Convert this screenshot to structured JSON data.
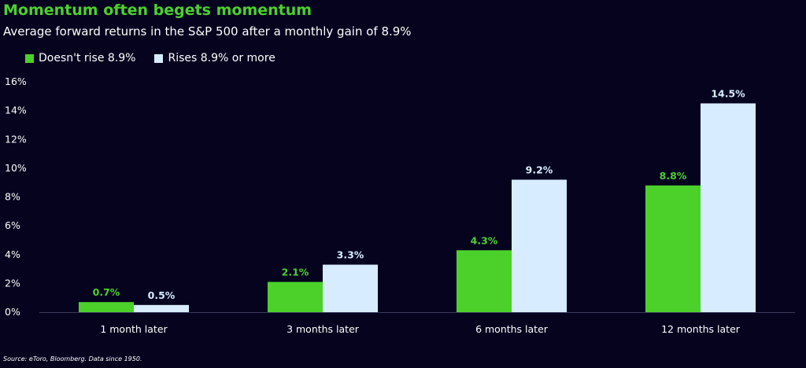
{
  "title": "Momentum often begets momentum",
  "subtitle": "Average forward returns in the S&P 500 after a monthly gain of 8.9%",
  "source": "Source: eToro, Bloomberg. Data since 1950.",
  "colors": {
    "background": "#05031e",
    "title": "#4cd12b",
    "series_green": "#4cd12b",
    "series_light": "#d8ecff",
    "label_green": "#4cd12b",
    "label_light": "#d8ecff"
  },
  "chart_data": {
    "type": "bar",
    "categories": [
      "1 month later",
      "3 months later",
      "6 months later",
      "12 months later"
    ],
    "series": [
      {
        "name": "Doesn't rise 8.9%",
        "values": [
          0.7,
          2.1,
          4.3,
          8.8
        ],
        "labels": [
          "0.7%",
          "2.1%",
          "4.3%",
          "8.8%"
        ],
        "color": "#4cd12b"
      },
      {
        "name": "Rises 8.9% or more",
        "values": [
          0.5,
          3.3,
          9.2,
          14.5
        ],
        "labels": [
          "0.5%",
          "3.3%",
          "9.2%",
          "14.5%"
        ],
        "color": "#d8ecff"
      }
    ],
    "yticks": [
      "0%",
      "2%",
      "4%",
      "6%",
      "8%",
      "10%",
      "12%",
      "14%",
      "16%"
    ],
    "ylim": [
      0,
      16
    ],
    "grid": false,
    "legend_position": "top-left"
  }
}
